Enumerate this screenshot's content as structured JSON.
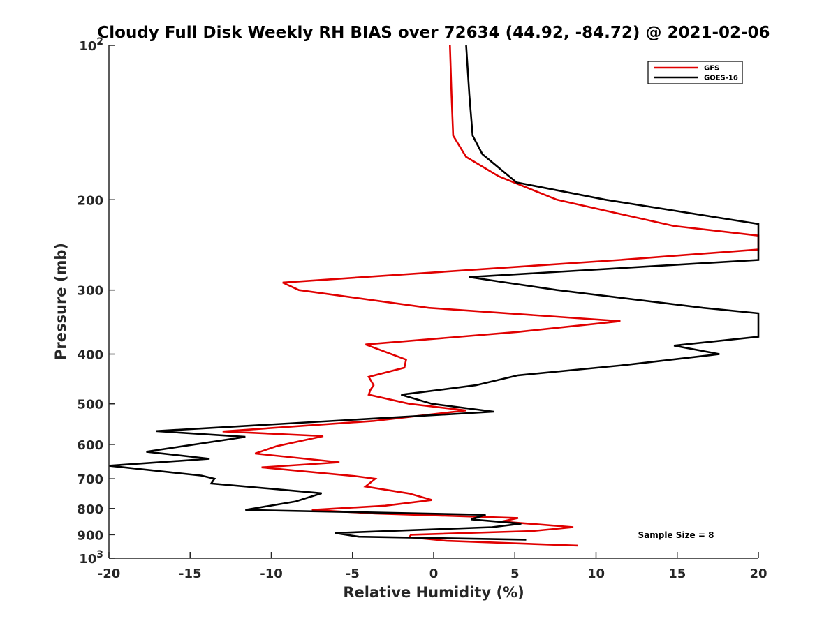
{
  "chart_data": {
    "type": "line",
    "title": "Cloudy Full Disk Weekly RH BIAS over 72634 (44.92, -84.72) @ 2021-02-06",
    "xlabel": "Relative Humidity (%)",
    "ylabel": "Pressure (mb)",
    "xlim": [
      -20,
      20
    ],
    "ylim": [
      100,
      1000
    ],
    "y_scale": "log",
    "y_reversed": true,
    "grid": false,
    "legend_position": "top-right",
    "annotation": "Sample Size = 8",
    "x_ticks": [
      "-20",
      "-15",
      "-10",
      "-5",
      "0",
      "5",
      "10",
      "15",
      "20"
    ],
    "y_ticks": [
      {
        "value": 100,
        "base": "10",
        "exp": "2"
      },
      {
        "value": 200,
        "label": "200"
      },
      {
        "value": 300,
        "label": "300"
      },
      {
        "value": 400,
        "label": "400"
      },
      {
        "value": 500,
        "label": "500"
      },
      {
        "value": 600,
        "label": "600"
      },
      {
        "value": 700,
        "label": "700"
      },
      {
        "value": 800,
        "label": "800"
      },
      {
        "value": 900,
        "label": "900"
      },
      {
        "value": 1000,
        "base": "10",
        "exp": "3"
      }
    ],
    "series": [
      {
        "name": "GFS",
        "color": "#e00000",
        "points": [
          [
            1.0,
            100
          ],
          [
            1.1,
            125
          ],
          [
            1.2,
            150
          ],
          [
            2.0,
            165
          ],
          [
            4.0,
            180
          ],
          [
            7.6,
            200
          ],
          [
            14.8,
            225
          ],
          [
            20.0,
            235
          ],
          [
            20.0,
            250
          ],
          [
            11.5,
            262
          ],
          [
            -9.3,
            290
          ],
          [
            -8.3,
            300
          ],
          [
            -0.3,
            325
          ],
          [
            11.5,
            345
          ],
          [
            5.2,
            362
          ],
          [
            -4.2,
            383
          ],
          [
            -1.7,
            410
          ],
          [
            -1.8,
            425
          ],
          [
            -4.0,
            443
          ],
          [
            -3.7,
            460
          ],
          [
            -3.9,
            470
          ],
          [
            -4.0,
            480
          ],
          [
            -1.5,
            500
          ],
          [
            2.0,
            515
          ],
          [
            -3.7,
            540
          ],
          [
            -13.0,
            566
          ],
          [
            -6.8,
            578
          ],
          [
            -9.7,
            605
          ],
          [
            -11.0,
            625
          ],
          [
            -5.8,
            650
          ],
          [
            -10.6,
            665
          ],
          [
            -4.8,
            692
          ],
          [
            -3.6,
            700
          ],
          [
            -4.2,
            725
          ],
          [
            -1.5,
            748
          ],
          [
            -0.1,
            770
          ],
          [
            -3.0,
            790
          ],
          [
            -7.5,
            805
          ],
          [
            -3.6,
            818
          ],
          [
            5.2,
            835
          ],
          [
            4.2,
            848
          ],
          [
            8.6,
            870
          ],
          [
            6.1,
            885
          ],
          [
            -1.4,
            900
          ],
          [
            -1.5,
            910
          ],
          [
            0.8,
            925
          ],
          [
            8.9,
            945
          ]
        ]
      },
      {
        "name": "GOES-16",
        "color": "#000000",
        "points": [
          [
            2.0,
            100
          ],
          [
            2.2,
            125
          ],
          [
            2.4,
            150
          ],
          [
            3.0,
            163
          ],
          [
            5.1,
            185
          ],
          [
            10.6,
            200
          ],
          [
            20.0,
            223
          ],
          [
            20.0,
            262
          ],
          [
            2.2,
            283
          ],
          [
            7.6,
            300
          ],
          [
            16.6,
            325
          ],
          [
            20.0,
            333
          ],
          [
            20.0,
            370
          ],
          [
            14.8,
            385
          ],
          [
            17.6,
            400
          ],
          [
            11.8,
            420
          ],
          [
            5.2,
            440
          ],
          [
            2.6,
            460
          ],
          [
            -2.0,
            480
          ],
          [
            -0.1,
            500
          ],
          [
            3.7,
            518
          ],
          [
            -17.1,
            565
          ],
          [
            -11.6,
            580
          ],
          [
            -17.7,
            620
          ],
          [
            -13.8,
            640
          ],
          [
            -20.0,
            660
          ],
          [
            -14.3,
            690
          ],
          [
            -13.5,
            700
          ],
          [
            -13.7,
            715
          ],
          [
            -6.9,
            747
          ],
          [
            -8.5,
            775
          ],
          [
            -11.6,
            805
          ],
          [
            3.2,
            823
          ],
          [
            2.3,
            840
          ],
          [
            5.4,
            856
          ],
          [
            3.6,
            870
          ],
          [
            -6.1,
            893
          ],
          [
            -4.6,
            908
          ],
          [
            5.7,
            920
          ]
        ]
      }
    ]
  }
}
